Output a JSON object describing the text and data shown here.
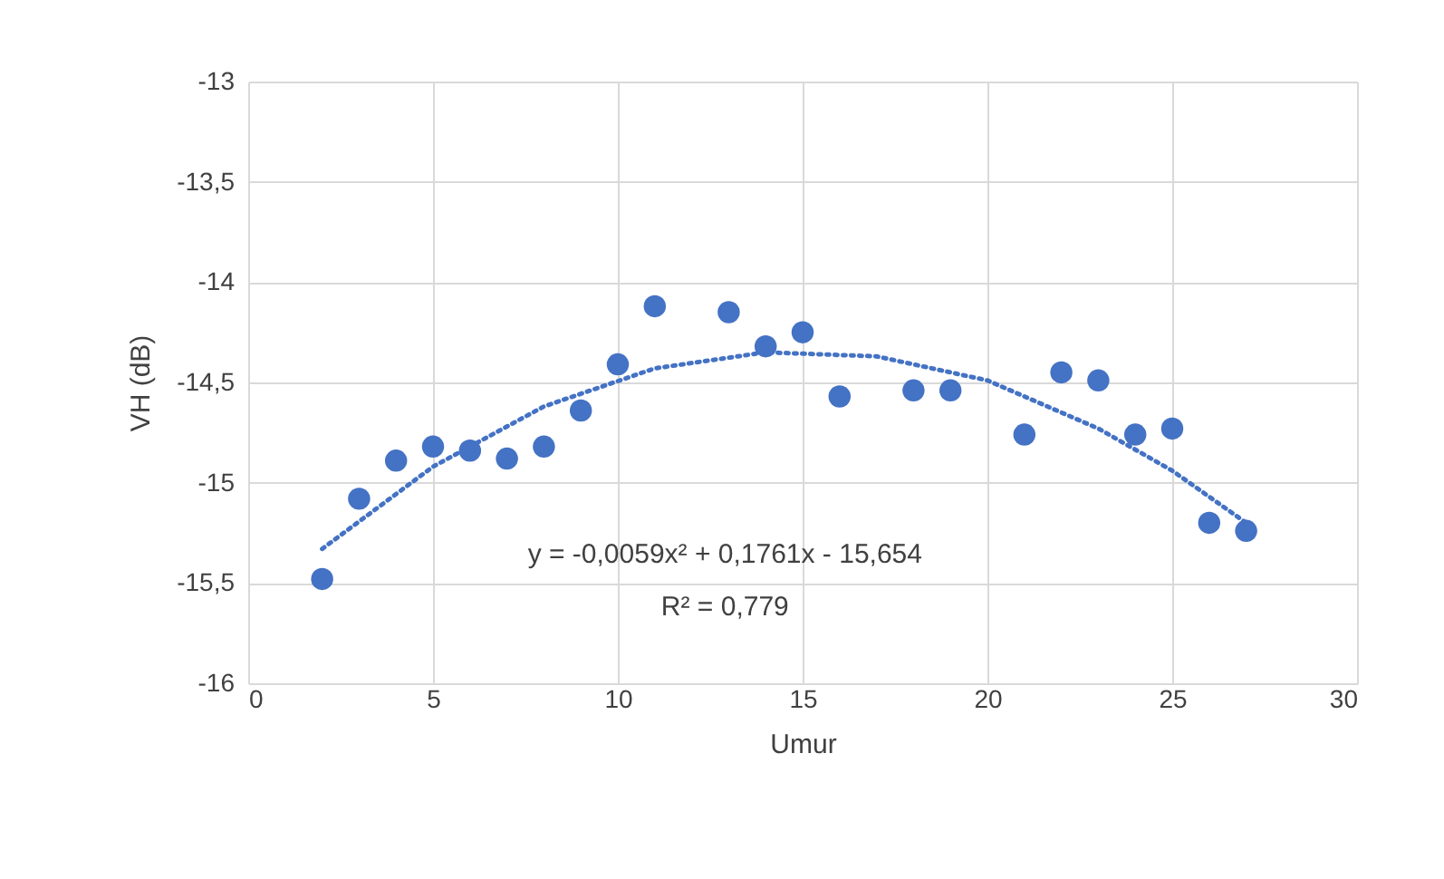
{
  "chart_data": {
    "type": "scatter",
    "xlabel": "Umur",
    "ylabel": "VH (dB)",
    "xlim": [
      0,
      30
    ],
    "xticks": [
      0,
      5,
      10,
      15,
      20,
      25,
      30
    ],
    "ylim": [
      -16,
      -13
    ],
    "yticks": [
      {
        "value": -16,
        "label": "-16"
      },
      {
        "value": -15.5,
        "label": "-15,5"
      },
      {
        "value": -15,
        "label": "-15"
      },
      {
        "value": -14.5,
        "label": "-14,5"
      },
      {
        "value": -14,
        "label": "-14"
      },
      {
        "value": -13.5,
        "label": "-13,5"
      },
      {
        "value": -13,
        "label": "-13"
      }
    ],
    "grid": true,
    "marker": "circle",
    "annotations": [
      "y = -0,0059x² + 0,1761x - 15,654",
      "R² = 0,779"
    ],
    "series": [
      {
        "color": "#4472c4",
        "x": [
          2,
          3,
          4,
          5,
          6,
          7,
          8,
          9,
          10,
          11,
          13,
          14,
          15,
          16,
          18,
          19,
          21,
          22,
          23,
          24,
          25,
          26,
          27
        ],
        "values": [
          -15.48,
          -15.08,
          -14.89,
          -14.82,
          -14.84,
          -14.88,
          -14.82,
          -14.64,
          -14.41,
          -14.12,
          -14.15,
          -14.32,
          -14.25,
          -14.57,
          -14.54,
          -14.54,
          -14.76,
          -14.45,
          -14.49,
          -14.76,
          -14.73,
          -15.2,
          -15.24
        ]
      },
      {
        "type": "line",
        "color": "#4472c4",
        "line_style": "dotted",
        "marker": "none",
        "x": [
          2,
          5,
          8,
          11,
          14,
          17,
          20,
          23,
          25,
          27
        ],
        "values": [
          -15.33,
          -14.92,
          -14.62,
          -14.43,
          -14.35,
          -14.37,
          -14.49,
          -14.73,
          -14.94,
          -15.2
        ]
      }
    ]
  }
}
